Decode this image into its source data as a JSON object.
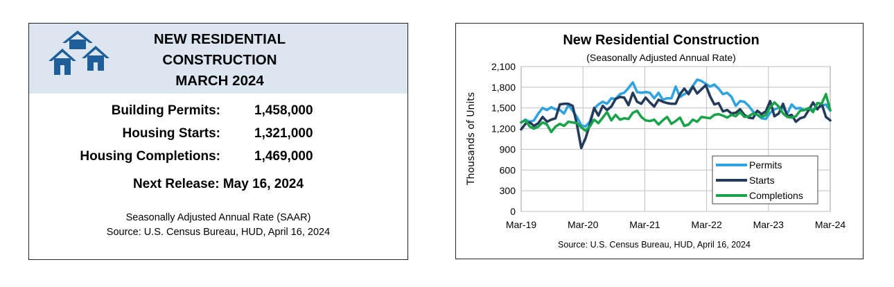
{
  "summary": {
    "title_lines": [
      "NEW RESIDENTIAL",
      "CONSTRUCTION",
      "MARCH 2024"
    ],
    "stats": [
      {
        "label": "Building Permits:",
        "value": "1,458,000"
      },
      {
        "label": "Housing Starts:",
        "value": "1,321,000"
      },
      {
        "label": "Housing Completions:",
        "value": "1,469,000"
      }
    ],
    "next_release": "Next Release:  May 16, 2024",
    "note_lines": [
      "Seasonally Adjusted Annual Rate (SAAR)",
      "Source:  U.S. Census Bureau, HUD, April 16, 2024"
    ],
    "colors": {
      "header_bg": "#dce6f1",
      "logo": "#1f5f99"
    }
  },
  "chart_data": {
    "type": "line",
    "title": "New Residential Construction",
    "subtitle": "(Seasonally Adjusted Annual Rate)",
    "ylabel": "Thousands of Units",
    "ylim": [
      0,
      2100
    ],
    "yticks": [
      0,
      300,
      600,
      900,
      1200,
      1500,
      1800,
      2100
    ],
    "ytick_labels": [
      "0",
      "300",
      "600",
      "900",
      "1,200",
      "1,500",
      "1,800",
      "2,100"
    ],
    "xticks": [
      "Mar-19",
      "Mar-20",
      "Mar-21",
      "Mar-22",
      "Mar-23",
      "Mar-24"
    ],
    "x_start": "Mar-19",
    "x_end": "Mar-24",
    "grid": true,
    "legend_position": "bottom-right",
    "source": "Source:  U.S. Census Bureau, HUD, April 16, 2024",
    "series": [
      {
        "name": "Permits",
        "color": "#2ea3e0",
        "values": [
          1290,
          1330,
          1300,
          1320,
          1420,
          1500,
          1470,
          1510,
          1480,
          1470,
          1420,
          1540,
          1460,
          1370,
          1250,
          1230,
          1300,
          1490,
          1550,
          1590,
          1560,
          1640,
          1630,
          1700,
          1720,
          1790,
          1870,
          1730,
          1720,
          1730,
          1720,
          1640,
          1720,
          1620,
          1640,
          1640,
          1810,
          1660,
          1700,
          1730,
          1820,
          1910,
          1890,
          1850,
          1810,
          1840,
          1780,
          1700,
          1720,
          1660,
          1530,
          1600,
          1590,
          1530,
          1450,
          1400,
          1350,
          1340,
          1430,
          1480,
          1500,
          1500,
          1420,
          1550,
          1490,
          1500,
          1470,
          1480,
          1480,
          1500,
          1530,
          1550,
          1460
        ]
      },
      {
        "name": "Starts",
        "color": "#243b5a",
        "values": [
          1190,
          1270,
          1290,
          1240,
          1280,
          1370,
          1300,
          1330,
          1350,
          1550,
          1560,
          1560,
          1530,
          1260,
          920,
          1060,
          1260,
          1500,
          1390,
          1530,
          1470,
          1520,
          1630,
          1660,
          1650,
          1540,
          1720,
          1590,
          1560,
          1650,
          1580,
          1520,
          1620,
          1590,
          1570,
          1560,
          1560,
          1700,
          1780,
          1700,
          1810,
          1710,
          1770,
          1830,
          1670,
          1550,
          1570,
          1450,
          1470,
          1420,
          1430,
          1480,
          1400,
          1360,
          1350,
          1460,
          1410,
          1450,
          1600,
          1380,
          1420,
          1560,
          1380,
          1400,
          1300,
          1350,
          1370,
          1470,
          1580,
          1480,
          1560,
          1370,
          1320
        ]
      },
      {
        "name": "Completions",
        "color": "#1aa34a",
        "values": [
          1290,
          1320,
          1230,
          1200,
          1230,
          1290,
          1260,
          1150,
          1230,
          1270,
          1240,
          1300,
          1290,
          1280,
          1220,
          1170,
          1230,
          1330,
          1280,
          1360,
          1440,
          1320,
          1400,
          1330,
          1350,
          1340,
          1430,
          1460,
          1370,
          1320,
          1310,
          1330,
          1260,
          1320,
          1370,
          1270,
          1310,
          1360,
          1240,
          1260,
          1330,
          1300,
          1370,
          1360,
          1350,
          1400,
          1410,
          1390,
          1360,
          1400,
          1380,
          1440,
          1370,
          1380,
          1420,
          1400,
          1370,
          1400,
          1510,
          1580,
          1520,
          1420,
          1370,
          1360,
          1380,
          1460,
          1470,
          1500,
          1440,
          1570,
          1560,
          1700,
          1469
        ]
      }
    ]
  }
}
